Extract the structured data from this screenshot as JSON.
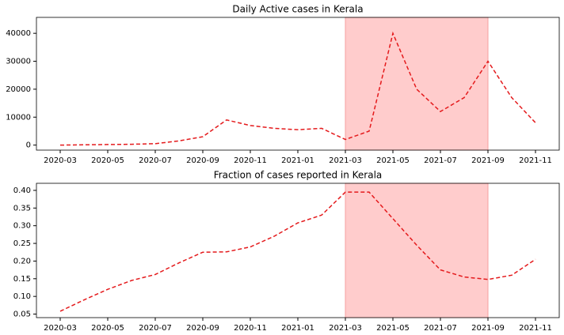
{
  "chart_data": [
    {
      "type": "line",
      "title": "Daily Active cases in Kerala",
      "x": [
        "2020-03",
        "2020-04",
        "2020-05",
        "2020-06",
        "2020-07",
        "2020-08",
        "2020-09",
        "2020-10",
        "2020-11",
        "2020-12",
        "2021-01",
        "2021-02",
        "2021-03",
        "2021-04",
        "2021-05",
        "2021-06",
        "2021-07",
        "2021-08",
        "2021-09",
        "2021-10",
        "2021-11"
      ],
      "series": [
        {
          "color": "#e41a1c",
          "values": [
            0,
            100,
            200,
            300,
            500,
            1500,
            3000,
            9000,
            7000,
            6000,
            5500,
            6000,
            2000,
            5000,
            40000,
            20000,
            12000,
            17000,
            30000,
            17000,
            8000
          ]
        }
      ],
      "xlim": [
        "2020-02",
        "2021-12"
      ],
      "xticks": [
        "2020-03",
        "2020-05",
        "2020-07",
        "2020-09",
        "2020-11",
        "2021-01",
        "2021-03",
        "2021-05",
        "2021-07",
        "2021-09",
        "2021-11"
      ],
      "ylim": [
        -1800,
        45700
      ],
      "yticks": [
        0,
        10000,
        20000,
        30000,
        40000
      ],
      "shade": [
        "2021-03",
        "2021-09"
      ],
      "shade_color": "#ffcccc"
    },
    {
      "type": "line",
      "title": "Fraction of cases reported in Kerala",
      "x": [
        "2020-03",
        "2020-04",
        "2020-05",
        "2020-06",
        "2020-07",
        "2020-08",
        "2020-09",
        "2020-10",
        "2020-11",
        "2020-12",
        "2021-01",
        "2021-02",
        "2021-03",
        "2021-04",
        "2021-05",
        "2021-06",
        "2021-07",
        "2021-08",
        "2021-09",
        "2021-10",
        "2021-11"
      ],
      "series": [
        {
          "color": "#e41a1c",
          "values": [
            0.058,
            0.09,
            0.12,
            0.145,
            0.162,
            0.195,
            0.225,
            0.226,
            0.24,
            0.27,
            0.308,
            0.33,
            0.395,
            0.395,
            0.32,
            0.245,
            0.175,
            0.155,
            0.148,
            0.16,
            0.205
          ]
        }
      ],
      "xlim": [
        "2020-02",
        "2021-12"
      ],
      "xticks": [
        "2020-03",
        "2020-05",
        "2020-07",
        "2020-09",
        "2020-11",
        "2021-01",
        "2021-03",
        "2021-05",
        "2021-07",
        "2021-09",
        "2021-11"
      ],
      "ylim": [
        0.04,
        0.42
      ],
      "yticks": [
        0.05,
        {
          "value": 0.1,
          "label": "0.10"
        },
        0.15,
        {
          "value": 0.2,
          "label": "0.20"
        },
        0.25,
        {
          "value": 0.3,
          "label": "0.30"
        },
        0.35,
        {
          "value": 0.4,
          "label": "0.40"
        }
      ],
      "shade": [
        "2021-03",
        "2021-09"
      ],
      "shade_color": "#ffcccc"
    }
  ]
}
